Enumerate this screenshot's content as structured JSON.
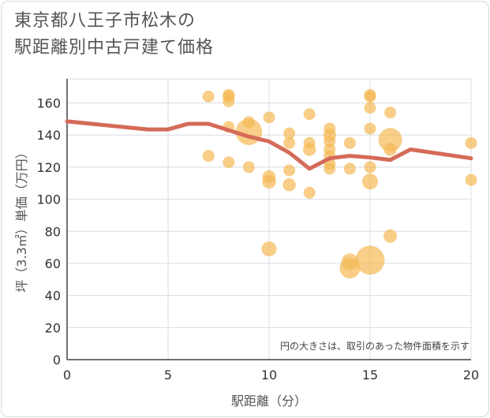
{
  "title": {
    "line1": "東京都八王子市松木の",
    "line2": "駅距離別中古戸建て価格"
  },
  "colors": {
    "bubble": "#f5b955",
    "line": "#d56a58",
    "grid": "#d9dde3"
  },
  "chart_data": {
    "type": "scatter",
    "title": "東京都八王子市松木の駅距離別中古戸建て価格",
    "xlabel": "駅距離（分）",
    "ylabel": "坪（3.3㎡）単価（万円）",
    "xlim": [
      0,
      20
    ],
    "ylim": [
      0,
      175
    ],
    "xticks": [
      "0",
      "5",
      "10",
      "15",
      "20"
    ],
    "yticks": [
      "0",
      "20",
      "40",
      "60",
      "80",
      "100",
      "120",
      "140",
      "160"
    ],
    "grid": true,
    "note": "円の大きさは、取引のあった物件面積を示す",
    "points": [
      {
        "x": 7,
        "y": 164,
        "size": 1
      },
      {
        "x": 7,
        "y": 127,
        "size": 1
      },
      {
        "x": 8,
        "y": 165,
        "size": 1
      },
      {
        "x": 8,
        "y": 164,
        "size": 1
      },
      {
        "x": 8,
        "y": 161,
        "size": 1
      },
      {
        "x": 8,
        "y": 145,
        "size": 1
      },
      {
        "x": 8,
        "y": 123,
        "size": 1
      },
      {
        "x": 9,
        "y": 142,
        "size": 5
      },
      {
        "x": 9,
        "y": 148,
        "size": 1
      },
      {
        "x": 9,
        "y": 120,
        "size": 1
      },
      {
        "x": 10,
        "y": 151,
        "size": 1
      },
      {
        "x": 10,
        "y": 114,
        "size": 1.2
      },
      {
        "x": 10,
        "y": 111,
        "size": 1.4
      },
      {
        "x": 10,
        "y": 69,
        "size": 1.6
      },
      {
        "x": 11,
        "y": 141,
        "size": 1
      },
      {
        "x": 11,
        "y": 135,
        "size": 1
      },
      {
        "x": 11,
        "y": 118,
        "size": 1
      },
      {
        "x": 11,
        "y": 109,
        "size": 1.2
      },
      {
        "x": 12,
        "y": 153,
        "size": 1
      },
      {
        "x": 12,
        "y": 135,
        "size": 1
      },
      {
        "x": 12,
        "y": 131,
        "size": 1.2
      },
      {
        "x": 12,
        "y": 104,
        "size": 1
      },
      {
        "x": 13,
        "y": 144,
        "size": 1
      },
      {
        "x": 13,
        "y": 140,
        "size": 1.2
      },
      {
        "x": 13,
        "y": 136,
        "size": 1
      },
      {
        "x": 13,
        "y": 131,
        "size": 1
      },
      {
        "x": 13,
        "y": 127,
        "size": 1
      },
      {
        "x": 13,
        "y": 122,
        "size": 1
      },
      {
        "x": 13,
        "y": 119,
        "size": 1
      },
      {
        "x": 14,
        "y": 135,
        "size": 1
      },
      {
        "x": 14,
        "y": 119,
        "size": 1
      },
      {
        "x": 14,
        "y": 57,
        "size": 3
      },
      {
        "x": 14,
        "y": 61,
        "size": 2
      },
      {
        "x": 15,
        "y": 165,
        "size": 1
      },
      {
        "x": 15,
        "y": 164,
        "size": 1
      },
      {
        "x": 15,
        "y": 157,
        "size": 1
      },
      {
        "x": 15,
        "y": 144,
        "size": 1
      },
      {
        "x": 15,
        "y": 120,
        "size": 1
      },
      {
        "x": 15,
        "y": 111,
        "size": 1.8
      },
      {
        "x": 15,
        "y": 62,
        "size": 6
      },
      {
        "x": 16,
        "y": 154,
        "size": 1
      },
      {
        "x": 16,
        "y": 137,
        "size": 4
      },
      {
        "x": 16,
        "y": 131,
        "size": 1.2
      },
      {
        "x": 16,
        "y": 77,
        "size": 1.3
      },
      {
        "x": 20,
        "y": 135,
        "size": 1
      },
      {
        "x": 20,
        "y": 112,
        "size": 1
      }
    ],
    "trend": {
      "name": "平均",
      "x": [
        0,
        4,
        5,
        6,
        7,
        9,
        10,
        11,
        12,
        13,
        14,
        15,
        16,
        17,
        20
      ],
      "y": [
        148.5,
        143.5,
        143.5,
        147,
        147,
        139,
        136,
        129,
        119,
        125.5,
        127,
        126,
        124.5,
        131,
        125.5
      ]
    }
  }
}
